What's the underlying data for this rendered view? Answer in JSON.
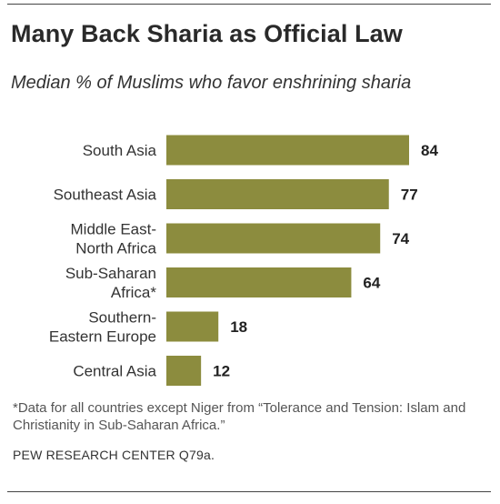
{
  "title": "Many Back Sharia as Official Law",
  "subtitle": "Median % of Muslims who favor enshrining sharia",
  "footnote": "*Data for all countries except Niger from “Tolerance and Tension: Islam and Christianity in Sub-Saharan Africa.”",
  "source": "PEW RESEARCH CENTER Q79a.",
  "colors": {
    "bar": "#8c8c3e"
  },
  "chart_data": {
    "type": "bar",
    "orientation": "horizontal",
    "title": "Many Back Sharia as Official Law",
    "subtitle": "Median % of Muslims who favor enshrining sharia",
    "categories": [
      [
        "South Asia"
      ],
      [
        "Southeast Asia"
      ],
      [
        "Middle East-",
        "North Africa"
      ],
      [
        "Sub-Saharan",
        "Africa*"
      ],
      [
        "Southern-",
        "Eastern Europe"
      ],
      [
        "Central Asia"
      ]
    ],
    "values": [
      84,
      77,
      74,
      64,
      18,
      12
    ],
    "value_labels": [
      "84",
      "77",
      "74",
      "64",
      "18",
      "12"
    ],
    "xlim": [
      0,
      84
    ],
    "grid": false,
    "legend": "none"
  }
}
